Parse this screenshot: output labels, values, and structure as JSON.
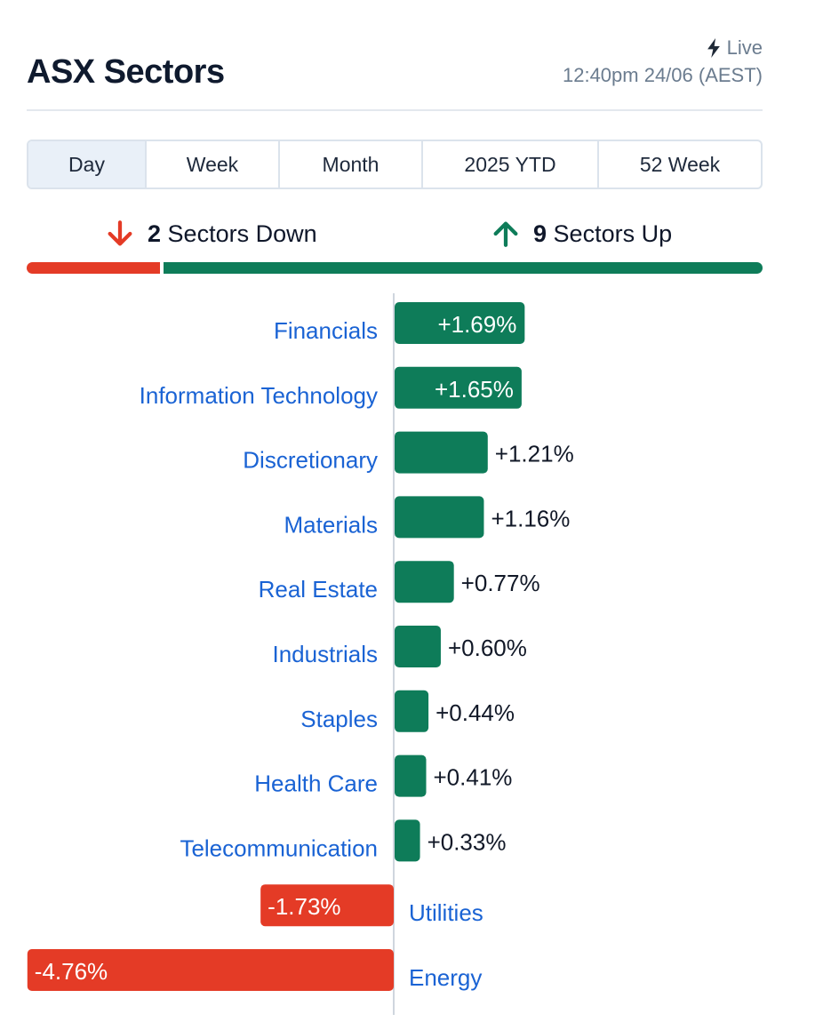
{
  "header": {
    "title": "ASX Sectors",
    "live_label": "Live",
    "timestamp": "12:40pm 24/06 (AEST)"
  },
  "tabs": [
    {
      "label": "Day",
      "active": true
    },
    {
      "label": "Week",
      "active": false
    },
    {
      "label": "Month",
      "active": false
    },
    {
      "label": "2025 YTD",
      "active": false
    },
    {
      "label": "52 Week",
      "active": false
    }
  ],
  "summary": {
    "down_count": "2",
    "down_label": "Sectors Down",
    "up_count": "9",
    "up_label": "Sectors Up"
  },
  "colors": {
    "up": "#0e7c59",
    "down": "#e43b26",
    "link": "#1a63d4"
  },
  "chart_data": {
    "type": "bar",
    "orientation": "horizontal",
    "categories": [
      "Financials",
      "Information Technology",
      "Discretionary",
      "Materials",
      "Real Estate",
      "Industrials",
      "Staples",
      "Health Care",
      "Telecommunication",
      "Utilities",
      "Energy"
    ],
    "values": [
      1.69,
      1.65,
      1.21,
      1.16,
      0.77,
      0.6,
      0.44,
      0.41,
      0.33,
      -1.73,
      -4.76
    ],
    "value_labels": [
      "+1.69%",
      "+1.65%",
      "+1.21%",
      "+1.16%",
      "+0.77%",
      "+0.60%",
      "+0.44%",
      "+0.41%",
      "+0.33%",
      "-1.73%",
      "-4.76%"
    ]
  }
}
